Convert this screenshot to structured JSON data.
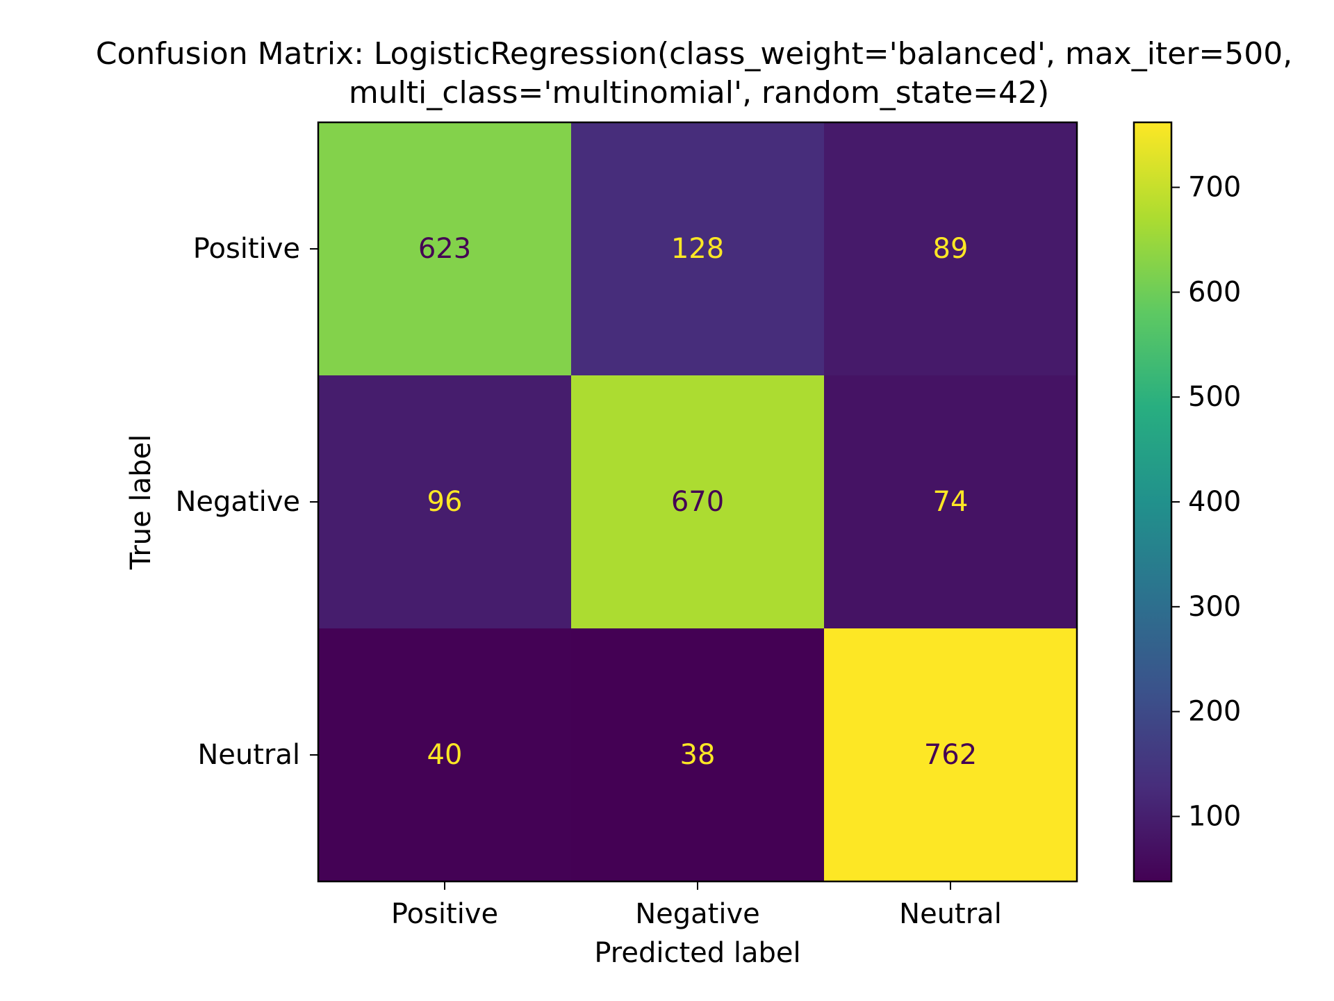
{
  "chart_data": {
    "type": "heatmap",
    "title": "Confusion Matrix: LogisticRegression(class_weight='balanced', max_iter=500,\nmulti_class='multinomial', random_state=42)",
    "xlabel": "Predicted label",
    "ylabel": "True label",
    "x_categories": [
      "Positive",
      "Negative",
      "Neutral"
    ],
    "y_categories": [
      "Positive",
      "Negative",
      "Neutral"
    ],
    "values": [
      [
        623,
        128,
        89
      ],
      [
        96,
        670,
        74
      ],
      [
        40,
        38,
        762
      ]
    ],
    "colormap": "viridis",
    "colorbar": {
      "range": [
        38,
        762
      ],
      "ticks": [
        100,
        200,
        300,
        400,
        500,
        600,
        700
      ]
    },
    "grid": false
  }
}
